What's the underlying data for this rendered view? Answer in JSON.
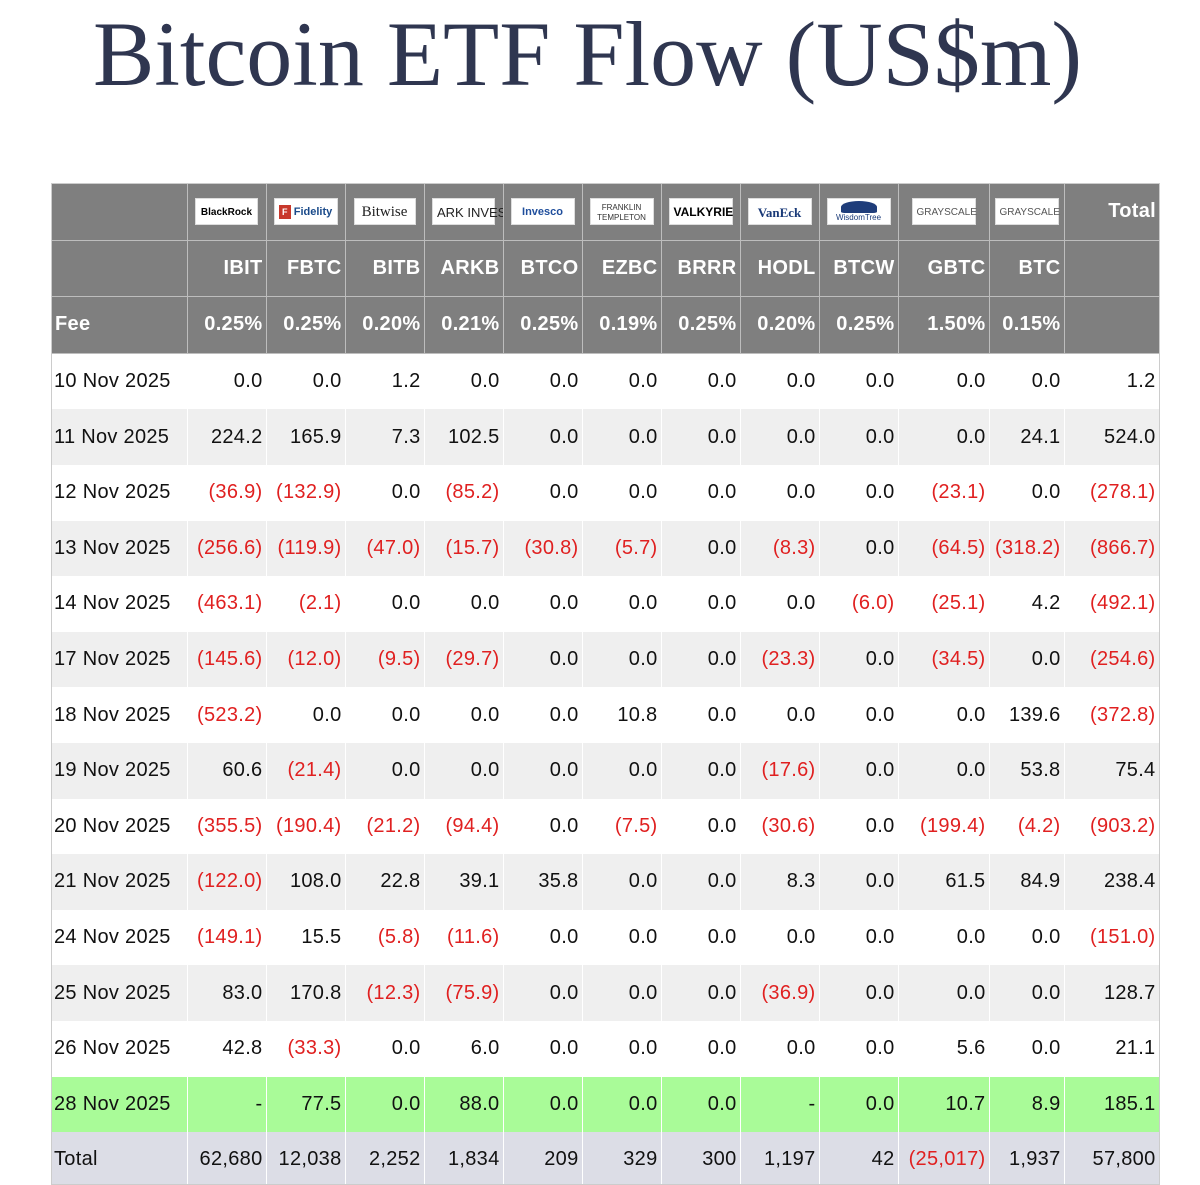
{
  "title": "Bitcoin ETF Flow (US$m)",
  "columns": [
    {
      "issuer": "BlackRock",
      "ticker": "IBIT",
      "fee": "0.25%"
    },
    {
      "issuer": "Fidelity",
      "ticker": "FBTC",
      "fee": "0.25%"
    },
    {
      "issuer": "Bitwise",
      "ticker": "BITB",
      "fee": "0.20%"
    },
    {
      "issuer": "ARK INVEST",
      "ticker": "ARKB",
      "fee": "0.21%"
    },
    {
      "issuer": "Invesco",
      "ticker": "BTCO",
      "fee": "0.25%"
    },
    {
      "issuer": "FRANKLIN TEMPLETON",
      "ticker": "EZBC",
      "fee": "0.19%"
    },
    {
      "issuer": "VALKYRIE",
      "ticker": "BRRR",
      "fee": "0.25%"
    },
    {
      "issuer": "VanEck",
      "ticker": "HODL",
      "fee": "0.20%"
    },
    {
      "issuer": "WisdomTree",
      "ticker": "BTCW",
      "fee": "0.25%"
    },
    {
      "issuer": "GRAYSCALE",
      "ticker": "GBTC",
      "fee": "1.50%"
    },
    {
      "issuer": "GRAYSCALE",
      "ticker": "BTC",
      "fee": "0.15%"
    }
  ],
  "total_header": "Total",
  "fee_label": "Fee",
  "rows": [
    {
      "date": "10 Nov 2025",
      "values": [
        "0.0",
        "0.0",
        "1.2",
        "0.0",
        "0.0",
        "0.0",
        "0.0",
        "0.0",
        "0.0",
        "0.0",
        "0.0"
      ],
      "total": "1.2"
    },
    {
      "date": "11 Nov 2025",
      "values": [
        "224.2",
        "165.9",
        "7.3",
        "102.5",
        "0.0",
        "0.0",
        "0.0",
        "0.0",
        "0.0",
        "0.0",
        "24.1"
      ],
      "total": "524.0"
    },
    {
      "date": "12 Nov 2025",
      "values": [
        "(36.9)",
        "(132.9)",
        "0.0",
        "(85.2)",
        "0.0",
        "0.0",
        "0.0",
        "0.0",
        "0.0",
        "(23.1)",
        "0.0"
      ],
      "total": "(278.1)"
    },
    {
      "date": "13 Nov 2025",
      "values": [
        "(256.6)",
        "(119.9)",
        "(47.0)",
        "(15.7)",
        "(30.8)",
        "(5.7)",
        "0.0",
        "(8.3)",
        "0.0",
        "(64.5)",
        "(318.2)"
      ],
      "total": "(866.7)"
    },
    {
      "date": "14 Nov 2025",
      "values": [
        "(463.1)",
        "(2.1)",
        "0.0",
        "0.0",
        "0.0",
        "0.0",
        "0.0",
        "0.0",
        "(6.0)",
        "(25.1)",
        "4.2"
      ],
      "total": "(492.1)"
    },
    {
      "date": "17 Nov 2025",
      "values": [
        "(145.6)",
        "(12.0)",
        "(9.5)",
        "(29.7)",
        "0.0",
        "0.0",
        "0.0",
        "(23.3)",
        "0.0",
        "(34.5)",
        "0.0"
      ],
      "total": "(254.6)"
    },
    {
      "date": "18 Nov 2025",
      "values": [
        "(523.2)",
        "0.0",
        "0.0",
        "0.0",
        "0.0",
        "10.8",
        "0.0",
        "0.0",
        "0.0",
        "0.0",
        "139.6"
      ],
      "total": "(372.8)"
    },
    {
      "date": "19 Nov 2025",
      "values": [
        "60.6",
        "(21.4)",
        "0.0",
        "0.0",
        "0.0",
        "0.0",
        "0.0",
        "(17.6)",
        "0.0",
        "0.0",
        "53.8"
      ],
      "total": "75.4"
    },
    {
      "date": "20 Nov 2025",
      "values": [
        "(355.5)",
        "(190.4)",
        "(21.2)",
        "(94.4)",
        "0.0",
        "(7.5)",
        "0.0",
        "(30.6)",
        "0.0",
        "(199.4)",
        "(4.2)"
      ],
      "total": "(903.2)"
    },
    {
      "date": "21 Nov 2025",
      "values": [
        "(122.0)",
        "108.0",
        "22.8",
        "39.1",
        "35.8",
        "0.0",
        "0.0",
        "8.3",
        "0.0",
        "61.5",
        "84.9"
      ],
      "total": "238.4"
    },
    {
      "date": "24 Nov 2025",
      "values": [
        "(149.1)",
        "15.5",
        "(5.8)",
        "(11.6)",
        "0.0",
        "0.0",
        "0.0",
        "0.0",
        "0.0",
        "0.0",
        "0.0"
      ],
      "total": "(151.0)"
    },
    {
      "date": "25 Nov 2025",
      "values": [
        "83.0",
        "170.8",
        "(12.3)",
        "(75.9)",
        "0.0",
        "0.0",
        "0.0",
        "(36.9)",
        "0.0",
        "0.0",
        "0.0"
      ],
      "total": "128.7"
    },
    {
      "date": "26 Nov 2025",
      "values": [
        "42.8",
        "(33.3)",
        "0.0",
        "6.0",
        "0.0",
        "0.0",
        "0.0",
        "0.0",
        "0.0",
        "5.6",
        "0.0"
      ],
      "total": "21.1"
    },
    {
      "date": "28 Nov 2025",
      "values": [
        "-",
        "77.5",
        "0.0",
        "88.0",
        "0.0",
        "0.0",
        "0.0",
        "-",
        "0.0",
        "10.7",
        "8.9"
      ],
      "total": "185.1",
      "highlight": true
    }
  ],
  "totals": {
    "label": "Total",
    "values": [
      "62,680",
      "12,038",
      "2,252",
      "1,834",
      "209",
      "329",
      "300",
      "1,197",
      "42",
      "(25,017)",
      "1,937"
    ],
    "total": "57,800"
  },
  "colors": {
    "header_bg": "#7f7f7f",
    "negative": "#e02020",
    "highlight": "#a9fb98",
    "total_row": "#dcdde6",
    "title": "#2f3650"
  }
}
